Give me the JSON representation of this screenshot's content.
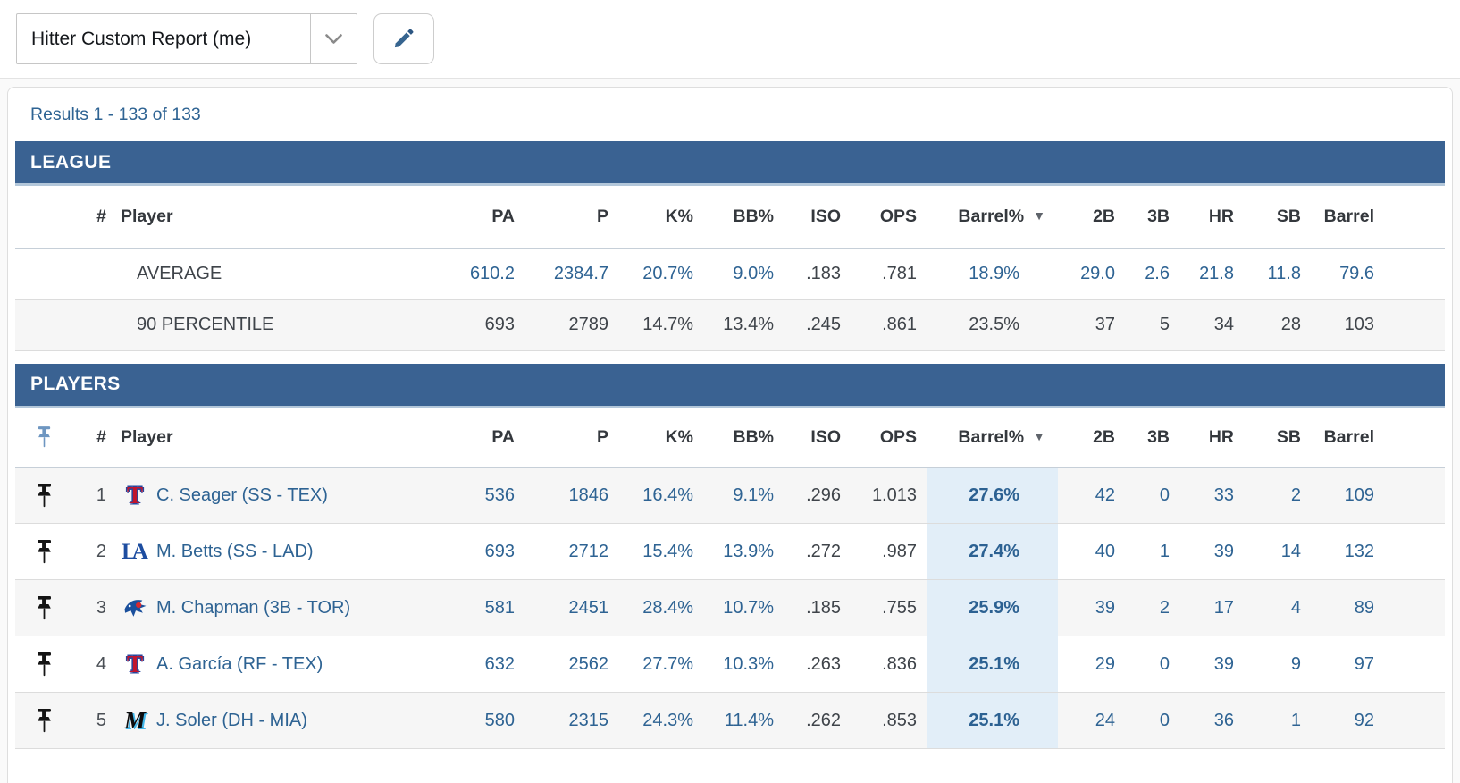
{
  "toolbar": {
    "report_select": {
      "value": "Hitter Custom Report (me)",
      "chevron_icon": "chevron-down-icon"
    },
    "edit_button": {
      "icon": "pencil-icon"
    }
  },
  "results_summary": "Results 1 - 133 of 133",
  "colors": {
    "section_bar": "#3a6292",
    "section_bar_edge": "#b3c7da",
    "stat_blue": "#2e6393",
    "dark_text": "#3f444a",
    "row_alt": "#f6f6f6",
    "barrel_highlight": "#e2eef8",
    "pin_black": "#141414",
    "pin_blue": "#6e96c1"
  },
  "table": {
    "columns": [
      {
        "key": "pin",
        "label": "",
        "icon": "pushpin-icon"
      },
      {
        "key": "num",
        "label": "#"
      },
      {
        "key": "player",
        "label": "Player"
      },
      {
        "key": "pa",
        "label": "PA"
      },
      {
        "key": "p",
        "label": "P"
      },
      {
        "key": "k_pct",
        "label": "K%"
      },
      {
        "key": "bb_pct",
        "label": "BB%"
      },
      {
        "key": "iso",
        "label": "ISO"
      },
      {
        "key": "ops",
        "label": "OPS"
      },
      {
        "key": "barrel_pct",
        "label": "Barrel%",
        "sorted": "desc",
        "sort_icon": "sort-desc-icon"
      },
      {
        "key": "doubles",
        "label": "2B"
      },
      {
        "key": "triples",
        "label": "3B"
      },
      {
        "key": "hr",
        "label": "HR"
      },
      {
        "key": "sb",
        "label": "SB"
      },
      {
        "key": "barrel",
        "label": "Barrel"
      }
    ],
    "dark_value_columns": [
      "iso",
      "ops"
    ],
    "league": {
      "title": "LEAGUE",
      "rows": [
        {
          "label": "AVERAGE",
          "muted": false,
          "stats": {
            "pa": "610.2",
            "p": "2384.7",
            "k_pct": "20.7%",
            "bb_pct": "9.0%",
            "iso": ".183",
            "ops": ".781",
            "barrel_pct": "18.9%",
            "doubles": "29.0",
            "triples": "2.6",
            "hr": "21.8",
            "sb": "11.8",
            "barrel": "79.6"
          }
        },
        {
          "label": "90 PERCENTILE",
          "muted": true,
          "stats": {
            "pa": "693",
            "p": "2789",
            "k_pct": "14.7%",
            "bb_pct": "13.4%",
            "iso": ".245",
            "ops": ".861",
            "barrel_pct": "23.5%",
            "doubles": "37",
            "triples": "5",
            "hr": "34",
            "sb": "28",
            "barrel": "103"
          }
        }
      ]
    },
    "players": {
      "title": "PLAYERS",
      "rows": [
        {
          "rank": "1",
          "team": "TEX",
          "name": "C. Seager (SS - TEX)",
          "pinned": true,
          "stats": {
            "pa": "536",
            "p": "1846",
            "k_pct": "16.4%",
            "bb_pct": "9.1%",
            "iso": ".296",
            "ops": "1.013",
            "barrel_pct": "27.6%",
            "doubles": "42",
            "triples": "0",
            "hr": "33",
            "sb": "2",
            "barrel": "109"
          }
        },
        {
          "rank": "2",
          "team": "LAD",
          "name": "M. Betts (SS - LAD)",
          "pinned": true,
          "stats": {
            "pa": "693",
            "p": "2712",
            "k_pct": "15.4%",
            "bb_pct": "13.9%",
            "iso": ".272",
            "ops": ".987",
            "barrel_pct": "27.4%",
            "doubles": "40",
            "triples": "1",
            "hr": "39",
            "sb": "14",
            "barrel": "132"
          }
        },
        {
          "rank": "3",
          "team": "TOR",
          "name": "M. Chapman (3B - TOR)",
          "pinned": true,
          "stats": {
            "pa": "581",
            "p": "2451",
            "k_pct": "28.4%",
            "bb_pct": "10.7%",
            "iso": ".185",
            "ops": ".755",
            "barrel_pct": "25.9%",
            "doubles": "39",
            "triples": "2",
            "hr": "17",
            "sb": "4",
            "barrel": "89"
          }
        },
        {
          "rank": "4",
          "team": "TEX",
          "name": "A. García (RF - TEX)",
          "pinned": true,
          "stats": {
            "pa": "632",
            "p": "2562",
            "k_pct": "27.7%",
            "bb_pct": "10.3%",
            "iso": ".263",
            "ops": ".836",
            "barrel_pct": "25.1%",
            "doubles": "29",
            "triples": "0",
            "hr": "39",
            "sb": "9",
            "barrel": "97"
          }
        },
        {
          "rank": "5",
          "team": "MIA",
          "name": "J. Soler (DH - MIA)",
          "pinned": true,
          "stats": {
            "pa": "580",
            "p": "2315",
            "k_pct": "24.3%",
            "bb_pct": "11.4%",
            "iso": ".262",
            "ops": ".853",
            "barrel_pct": "25.1%",
            "doubles": "24",
            "triples": "0",
            "hr": "36",
            "sb": "1",
            "barrel": "92"
          }
        }
      ]
    }
  }
}
